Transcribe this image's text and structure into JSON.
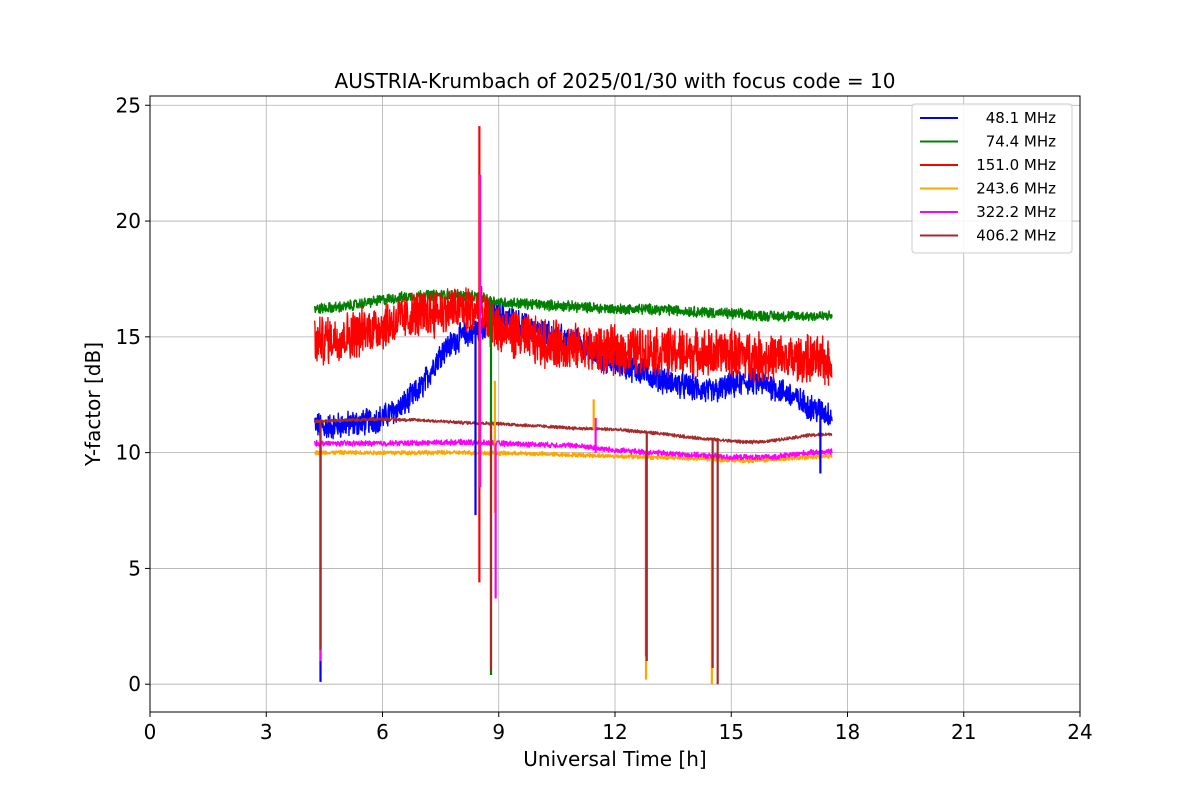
{
  "chart_data": {
    "type": "line",
    "title": "AUSTRIA-Krumbach of 2025/01/30 with focus code = 10",
    "xlabel": "Universal Time [h]",
    "ylabel": "Y-factor [dB]",
    "xlim": [
      0,
      24
    ],
    "ylim": [
      -1.2,
      25.4
    ],
    "xticks": [
      0,
      3,
      6,
      9,
      12,
      15,
      18,
      21,
      24
    ],
    "yticks": [
      0,
      5,
      10,
      15,
      20,
      25
    ],
    "grid": true,
    "legend_position": "top-right",
    "series": [
      {
        "name": "48.1 MHz",
        "color": "#0000ff",
        "noise": 0.5,
        "x": [
          4.25,
          4.5,
          5.0,
          5.5,
          6.0,
          6.5,
          7.0,
          7.5,
          8.0,
          8.5,
          9.0,
          9.5,
          10.0,
          10.5,
          11.0,
          11.5,
          12.0,
          12.5,
          13.0,
          13.5,
          14.0,
          14.5,
          15.0,
          15.5,
          16.0,
          16.5,
          17.0,
          17.6
        ],
        "y": [
          11.2,
          11.1,
          11.2,
          11.3,
          11.5,
          12.0,
          12.8,
          14.3,
          15.0,
          15.3,
          16.0,
          15.6,
          15.2,
          15.0,
          14.8,
          14.2,
          13.9,
          13.6,
          13.3,
          13.0,
          12.8,
          12.6,
          12.9,
          13.1,
          12.9,
          12.5,
          12.0,
          11.6
        ]
      },
      {
        "name": "74.4 MHz",
        "color": "#008000",
        "noise": 0.2,
        "x": [
          4.25,
          5.0,
          6.0,
          7.0,
          8.0,
          8.5,
          9.0,
          10.0,
          11.0,
          12.0,
          13.0,
          14.0,
          15.0,
          16.0,
          17.0,
          17.6
        ],
        "y": [
          16.2,
          16.3,
          16.6,
          16.8,
          16.8,
          16.7,
          16.5,
          16.4,
          16.3,
          16.2,
          16.2,
          16.1,
          16.0,
          15.9,
          15.9,
          15.9
        ]
      },
      {
        "name": "151.0 MHz",
        "color": "#ff0000",
        "noise": 0.9,
        "x": [
          4.25,
          5.0,
          6.0,
          7.0,
          8.0,
          8.5,
          9.0,
          10.0,
          11.0,
          12.0,
          13.0,
          14.0,
          15.0,
          16.0,
          17.0,
          17.6
        ],
        "y": [
          14.8,
          15.0,
          15.5,
          16.0,
          16.2,
          16.1,
          15.3,
          14.8,
          14.5,
          14.4,
          14.4,
          14.3,
          14.3,
          14.1,
          14.0,
          13.9
        ]
      },
      {
        "name": "243.6 MHz",
        "color": "#ffa500",
        "noise": 0.08,
        "x": [
          4.25,
          6.0,
          8.0,
          10.0,
          12.0,
          14.0,
          15.5,
          17.0,
          17.6
        ],
        "y": [
          10.0,
          10.0,
          10.0,
          9.95,
          9.85,
          9.75,
          9.65,
          9.8,
          9.85
        ]
      },
      {
        "name": "322.2 MHz",
        "color": "#ff00ff",
        "noise": 0.1,
        "x": [
          4.25,
          6.0,
          8.0,
          9.0,
          10.0,
          11.0,
          12.0,
          13.0,
          14.0,
          15.0,
          16.0,
          17.0,
          17.6
        ],
        "y": [
          10.4,
          10.4,
          10.45,
          10.4,
          10.35,
          10.3,
          10.1,
          10.0,
          9.9,
          9.8,
          9.8,
          10.0,
          10.05
        ]
      },
      {
        "name": "406.2 MHz",
        "color": "#a52a2a",
        "noise": 0.06,
        "x": [
          4.25,
          5.0,
          6.0,
          7.0,
          8.0,
          9.0,
          10.0,
          11.0,
          12.0,
          13.0,
          14.0,
          15.0,
          15.5,
          16.0,
          17.0,
          17.6
        ],
        "y": [
          11.35,
          11.4,
          11.45,
          11.4,
          11.3,
          11.25,
          11.15,
          11.05,
          11.0,
          10.85,
          10.65,
          10.5,
          10.45,
          10.5,
          10.75,
          10.8
        ]
      }
    ],
    "spikes": [
      {
        "x": 4.4,
        "low": 0.1,
        "color": "#0000ff"
      },
      {
        "x": 4.4,
        "low": 1.0,
        "color": "#ff00ff"
      },
      {
        "x": 4.4,
        "low": 1.5,
        "color": "#a52a2a"
      },
      {
        "x": 8.4,
        "high": 15.7,
        "low": 7.3,
        "color": "#0000ff"
      },
      {
        "x": 8.5,
        "high": 24.1,
        "low": 4.4,
        "color": "#ff0000"
      },
      {
        "x": 8.52,
        "high": 22.0,
        "low": 8.5,
        "color": "#ff00ff"
      },
      {
        "x": 8.8,
        "low": 0.4,
        "color": "#008000"
      },
      {
        "x": 8.8,
        "low": 0.6,
        "color": "#a52a2a"
      },
      {
        "x": 8.9,
        "high": 13.1,
        "low": 7.4,
        "color": "#ffa500"
      },
      {
        "x": 8.92,
        "high": 10.4,
        "low": 3.7,
        "color": "#ff00ff"
      },
      {
        "x": 11.5,
        "high": 11.5,
        "low": 10.0,
        "color": "#ff00ff"
      },
      {
        "x": 11.45,
        "high": 12.3,
        "low": 11.0,
        "color": "#ffa500"
      },
      {
        "x": 12.8,
        "low": 0.2,
        "color": "#ffa500"
      },
      {
        "x": 12.8,
        "low": 1.2,
        "color": "#ff00ff"
      },
      {
        "x": 12.82,
        "low": 1.0,
        "color": "#a52a2a"
      },
      {
        "x": 14.5,
        "low": 0.0,
        "color": "#ffa500"
      },
      {
        "x": 14.52,
        "low": 0.7,
        "color": "#a52a2a"
      },
      {
        "x": 14.65,
        "low": 0.0,
        "color": "#a52a2a"
      },
      {
        "x": 17.3,
        "low": 9.1,
        "color": "#0000ff"
      }
    ]
  }
}
